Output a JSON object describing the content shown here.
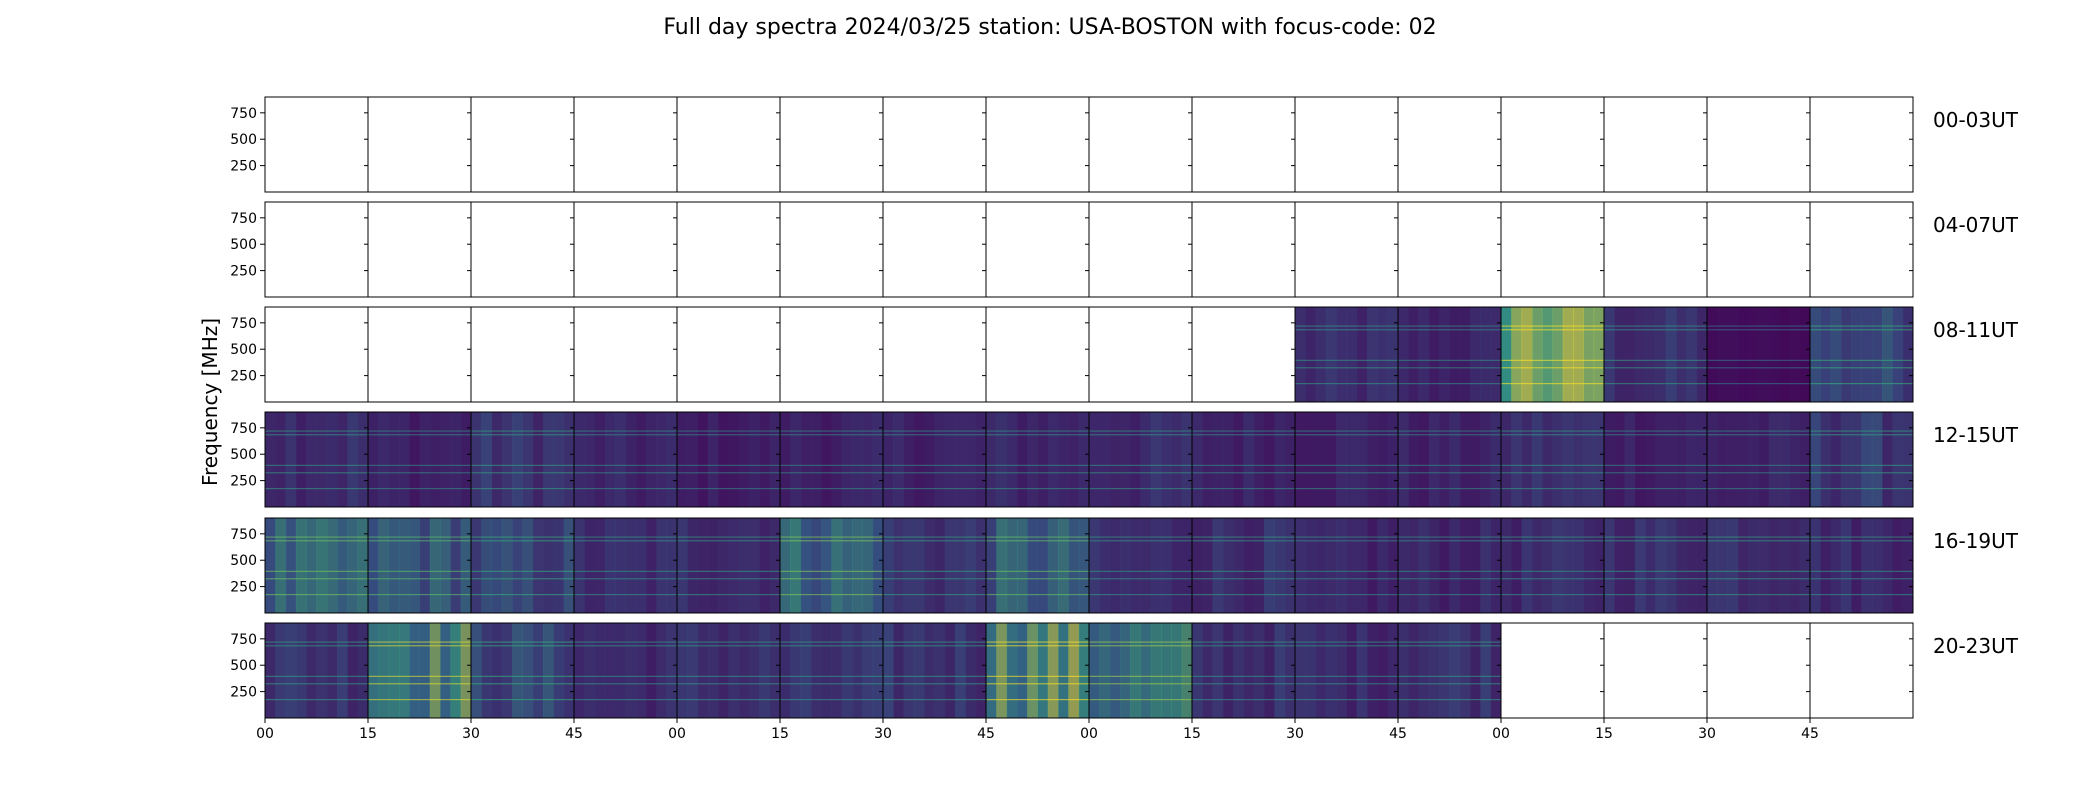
{
  "chart_data": {
    "type": "heatmap",
    "title": "Full day spectra 2024/03/25 station: USA-BOSTON with focus-code: 02",
    "ylabel": "Frequency [MHz]",
    "y_ticks": [
      "750",
      "500",
      "250"
    ],
    "y_tick_values": [
      750,
      500,
      250
    ],
    "ylim": [
      0,
      900
    ],
    "x_ticks": [
      "00",
      "15",
      "30",
      "45",
      "00",
      "15",
      "30",
      "45",
      "00",
      "15",
      "30",
      "45",
      "00",
      "15",
      "30",
      "45"
    ],
    "colormap": "viridis",
    "colors": {
      "low": "#440154",
      "mid": "#31688e",
      "high": "#35b779",
      "max": "#fde725"
    },
    "rows": [
      {
        "label": "00-03UT",
        "panels": [
          {
            "has_data": false,
            "level": 0
          },
          {
            "has_data": false,
            "level": 0
          },
          {
            "has_data": false,
            "level": 0
          },
          {
            "has_data": false,
            "level": 0
          },
          {
            "has_data": false,
            "level": 0
          },
          {
            "has_data": false,
            "level": 0
          },
          {
            "has_data": false,
            "level": 0
          },
          {
            "has_data": false,
            "level": 0
          },
          {
            "has_data": false,
            "level": 0
          },
          {
            "has_data": false,
            "level": 0
          },
          {
            "has_data": false,
            "level": 0
          },
          {
            "has_data": false,
            "level": 0
          },
          {
            "has_data": false,
            "level": 0
          },
          {
            "has_data": false,
            "level": 0
          },
          {
            "has_data": false,
            "level": 0
          },
          {
            "has_data": false,
            "level": 0
          }
        ]
      },
      {
        "label": "04-07UT",
        "panels": [
          {
            "has_data": false,
            "level": 0
          },
          {
            "has_data": false,
            "level": 0
          },
          {
            "has_data": false,
            "level": 0
          },
          {
            "has_data": false,
            "level": 0
          },
          {
            "has_data": false,
            "level": 0
          },
          {
            "has_data": false,
            "level": 0
          },
          {
            "has_data": false,
            "level": 0
          },
          {
            "has_data": false,
            "level": 0
          },
          {
            "has_data": false,
            "level": 0
          },
          {
            "has_data": false,
            "level": 0
          },
          {
            "has_data": false,
            "level": 0
          },
          {
            "has_data": false,
            "level": 0
          },
          {
            "has_data": false,
            "level": 0
          },
          {
            "has_data": false,
            "level": 0
          },
          {
            "has_data": false,
            "level": 0
          },
          {
            "has_data": false,
            "level": 0
          }
        ]
      },
      {
        "label": "08-11UT",
        "panels": [
          {
            "has_data": false,
            "level": 0
          },
          {
            "has_data": false,
            "level": 0
          },
          {
            "has_data": false,
            "level": 0
          },
          {
            "has_data": false,
            "level": 0
          },
          {
            "has_data": false,
            "level": 0
          },
          {
            "has_data": false,
            "level": 0
          },
          {
            "has_data": false,
            "level": 0
          },
          {
            "has_data": false,
            "level": 0
          },
          {
            "has_data": false,
            "level": 0
          },
          {
            "has_data": false,
            "level": 0
          },
          {
            "has_data": true,
            "level": 0.18
          },
          {
            "has_data": true,
            "level": 0.15
          },
          {
            "has_data": true,
            "level": 0.9
          },
          {
            "has_data": true,
            "level": 0.2
          },
          {
            "has_data": true,
            "level": 0.05
          },
          {
            "has_data": true,
            "level": 0.3
          }
        ]
      },
      {
        "label": "12-15UT",
        "panels": [
          {
            "has_data": true,
            "level": 0.2
          },
          {
            "has_data": true,
            "level": 0.14
          },
          {
            "has_data": true,
            "level": 0.22
          },
          {
            "has_data": true,
            "level": 0.15
          },
          {
            "has_data": true,
            "level": 0.12
          },
          {
            "has_data": true,
            "level": 0.14
          },
          {
            "has_data": true,
            "level": 0.15
          },
          {
            "has_data": true,
            "level": 0.16
          },
          {
            "has_data": true,
            "level": 0.18
          },
          {
            "has_data": true,
            "level": 0.15
          },
          {
            "has_data": true,
            "level": 0.15
          },
          {
            "has_data": true,
            "level": 0.14
          },
          {
            "has_data": true,
            "level": 0.2
          },
          {
            "has_data": true,
            "level": 0.14
          },
          {
            "has_data": true,
            "level": 0.14
          },
          {
            "has_data": true,
            "level": 0.24
          }
        ]
      },
      {
        "label": "16-19UT",
        "panels": [
          {
            "has_data": true,
            "level": 0.42
          },
          {
            "has_data": true,
            "level": 0.38
          },
          {
            "has_data": true,
            "level": 0.28
          },
          {
            "has_data": true,
            "level": 0.18
          },
          {
            "has_data": true,
            "level": 0.2
          },
          {
            "has_data": true,
            "level": 0.45
          },
          {
            "has_data": true,
            "level": 0.22
          },
          {
            "has_data": true,
            "level": 0.4
          },
          {
            "has_data": true,
            "level": 0.18
          },
          {
            "has_data": true,
            "level": 0.2
          },
          {
            "has_data": true,
            "level": 0.15
          },
          {
            "has_data": true,
            "level": 0.16
          },
          {
            "has_data": true,
            "level": 0.18
          },
          {
            "has_data": true,
            "level": 0.2
          },
          {
            "has_data": true,
            "level": 0.22
          },
          {
            "has_data": true,
            "level": 0.18
          }
        ]
      },
      {
        "label": "20-23UT",
        "panels": [
          {
            "has_data": true,
            "level": 0.22
          },
          {
            "has_data": true,
            "level": 0.6
          },
          {
            "has_data": true,
            "level": 0.3
          },
          {
            "has_data": true,
            "level": 0.18
          },
          {
            "has_data": true,
            "level": 0.2
          },
          {
            "has_data": true,
            "level": 0.2
          },
          {
            "has_data": true,
            "level": 0.22
          },
          {
            "has_data": true,
            "level": 0.65
          },
          {
            "has_data": true,
            "level": 0.5
          },
          {
            "has_data": true,
            "level": 0.2
          },
          {
            "has_data": true,
            "level": 0.18
          },
          {
            "has_data": true,
            "level": 0.22
          },
          {
            "has_data": false,
            "level": 0
          },
          {
            "has_data": false,
            "level": 0
          },
          {
            "has_data": false,
            "level": 0
          },
          {
            "has_data": false,
            "level": 0
          }
        ]
      }
    ]
  }
}
